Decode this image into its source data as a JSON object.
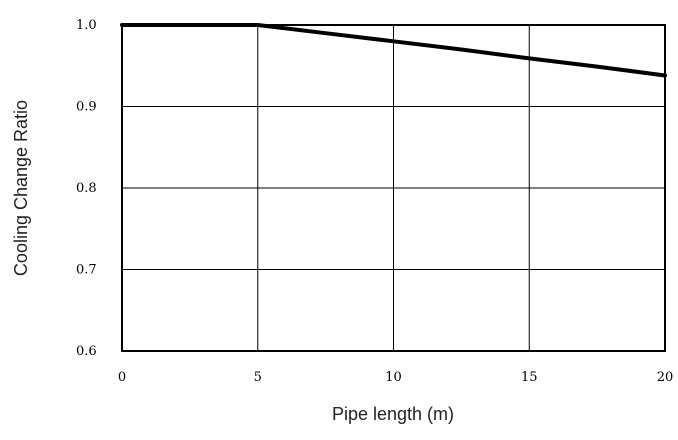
{
  "chart_data": {
    "type": "line",
    "title": "",
    "xlabel": "Pipe length (m)",
    "ylabel": "Cooling Change Ratio",
    "xlim": [
      0,
      20
    ],
    "ylim": [
      0.6,
      1.0
    ],
    "x_ticks": [
      "0",
      "5",
      "10",
      "15",
      "20"
    ],
    "y_ticks": [
      "0.6",
      "0.7",
      "0.8",
      "0.9",
      "1.0"
    ],
    "grid": true,
    "legend": "none",
    "series": [
      {
        "x": [
          0,
          5,
          7.5,
          10,
          12.5,
          15,
          17.5,
          20
        ],
        "y": [
          1.0,
          1.0,
          0.99,
          0.98,
          0.97,
          0.959,
          0.949,
          0.938
        ]
      }
    ]
  }
}
